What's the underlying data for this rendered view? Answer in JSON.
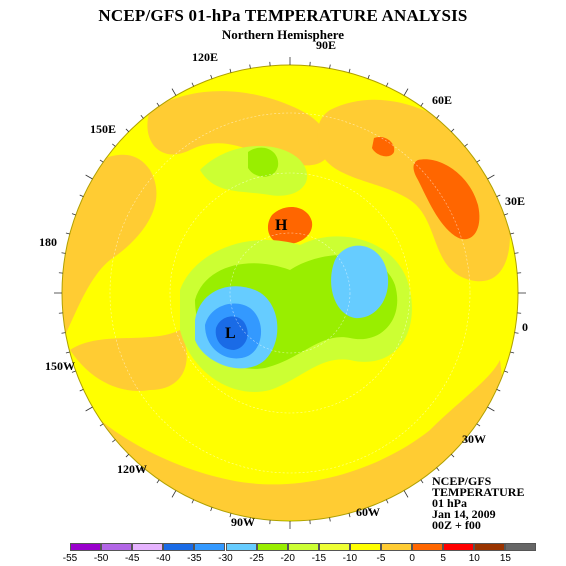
{
  "header": {
    "title": "NCEP/GFS 01-hPa TEMPERATURE ANALYSIS",
    "subtitle": "Northern Hemisphere"
  },
  "longitude_labels": [
    "90E",
    "120E",
    "60E",
    "150E",
    "30E",
    "180",
    "0",
    "150W",
    "30W",
    "120W",
    "90W",
    "60W"
  ],
  "map": {
    "background_color": "#ffff00",
    "outer_ring_color": "#ffcc33",
    "highs": [
      "H"
    ],
    "lows": [
      "L"
    ]
  },
  "info_box": {
    "lines": [
      "NCEP/GFS",
      "TEMPERATURE",
      "01 hPa",
      "Jan 14, 2009",
      "00Z + f00"
    ]
  },
  "legend": {
    "ticks": [
      "-55",
      "-50",
      "-45",
      "-40",
      "-35",
      "-30",
      "-25",
      "-20",
      "-15",
      "-10",
      "-5",
      "0",
      "5",
      "10",
      "15"
    ],
    "colors": [
      "#9900cc",
      "#b266e6",
      "#e6b3ff",
      "#1a6be6",
      "#3399ff",
      "#66ccff",
      "#99ee00",
      "#ccff33",
      "#eeff33",
      "#ffff00",
      "#ffcc33",
      "#ff6600",
      "#ff0000",
      "#993300",
      "#666666"
    ]
  }
}
